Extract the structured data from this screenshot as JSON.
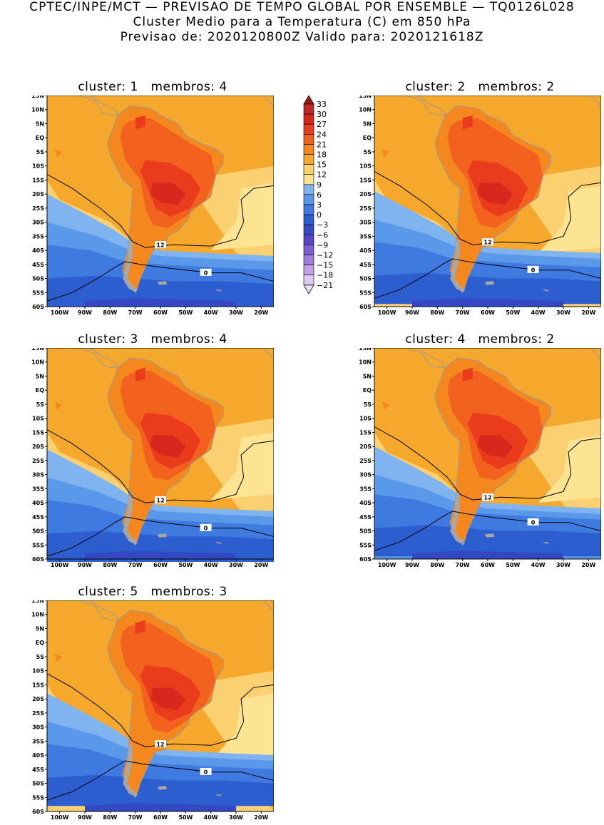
{
  "header": {
    "line1": "CPTEC/INPE/MCT — PREVISAO DE TEMPO GLOBAL POR ENSEMBLE — TQ0126L028",
    "line2": "Cluster Medio para a Temperatura (C) em 850 hPa",
    "line3": "Previsao de: 2020120800Z    Valido para: 2020121618Z"
  },
  "axes": {
    "lat_labels": [
      "15N",
      "10N",
      "5N",
      "EQ",
      "5S",
      "10S",
      "15S",
      "20S",
      "25S",
      "30S",
      "35S",
      "40S",
      "45S",
      "50S",
      "55S",
      "60S"
    ],
    "lon_labels": [
      "100W",
      "90W",
      "80W",
      "70W",
      "60W",
      "50W",
      "40W",
      "30W",
      "20W"
    ]
  },
  "panels": [
    {
      "id": 1,
      "title": "cluster: 1   membros: 4",
      "contour_12_label": "12",
      "contour_0_label": "0"
    },
    {
      "id": 2,
      "title": "cluster: 2   membros: 2",
      "contour_12_label": "12",
      "contour_0_label": "0"
    },
    {
      "id": 3,
      "title": "cluster: 3   membros: 4",
      "contour_12_label": "12",
      "contour_0_label": "0"
    },
    {
      "id": 4,
      "title": "cluster: 4   membros: 2",
      "contour_12_label": "12",
      "contour_0_label": "0"
    },
    {
      "id": 5,
      "title": "cluster: 5   membros: 3",
      "contour_12_label": "12",
      "contour_0_label": "0"
    }
  ],
  "colorbar": {
    "labels": [
      "33",
      "30",
      "27",
      "24",
      "21",
      "18",
      "15",
      "12",
      "9",
      "6",
      "3",
      "0",
      "−3",
      "−6",
      "−9",
      "−12",
      "−15",
      "−18",
      "−21"
    ],
    "colors": [
      "#a01818",
      "#c0282a",
      "#d8281e",
      "#ea3c1c",
      "#f2621e",
      "#f4881e",
      "#f6a82c",
      "#fbd070",
      "#fde492",
      "#7fb4f0",
      "#5a98ea",
      "#3f7ae0",
      "#2c5ed0",
      "#3448c4",
      "#5a46c8",
      "#7e60d2",
      "#a07edc",
      "#c2a2e6",
      "#dccaf0",
      "#ece2f6"
    ]
  }
}
